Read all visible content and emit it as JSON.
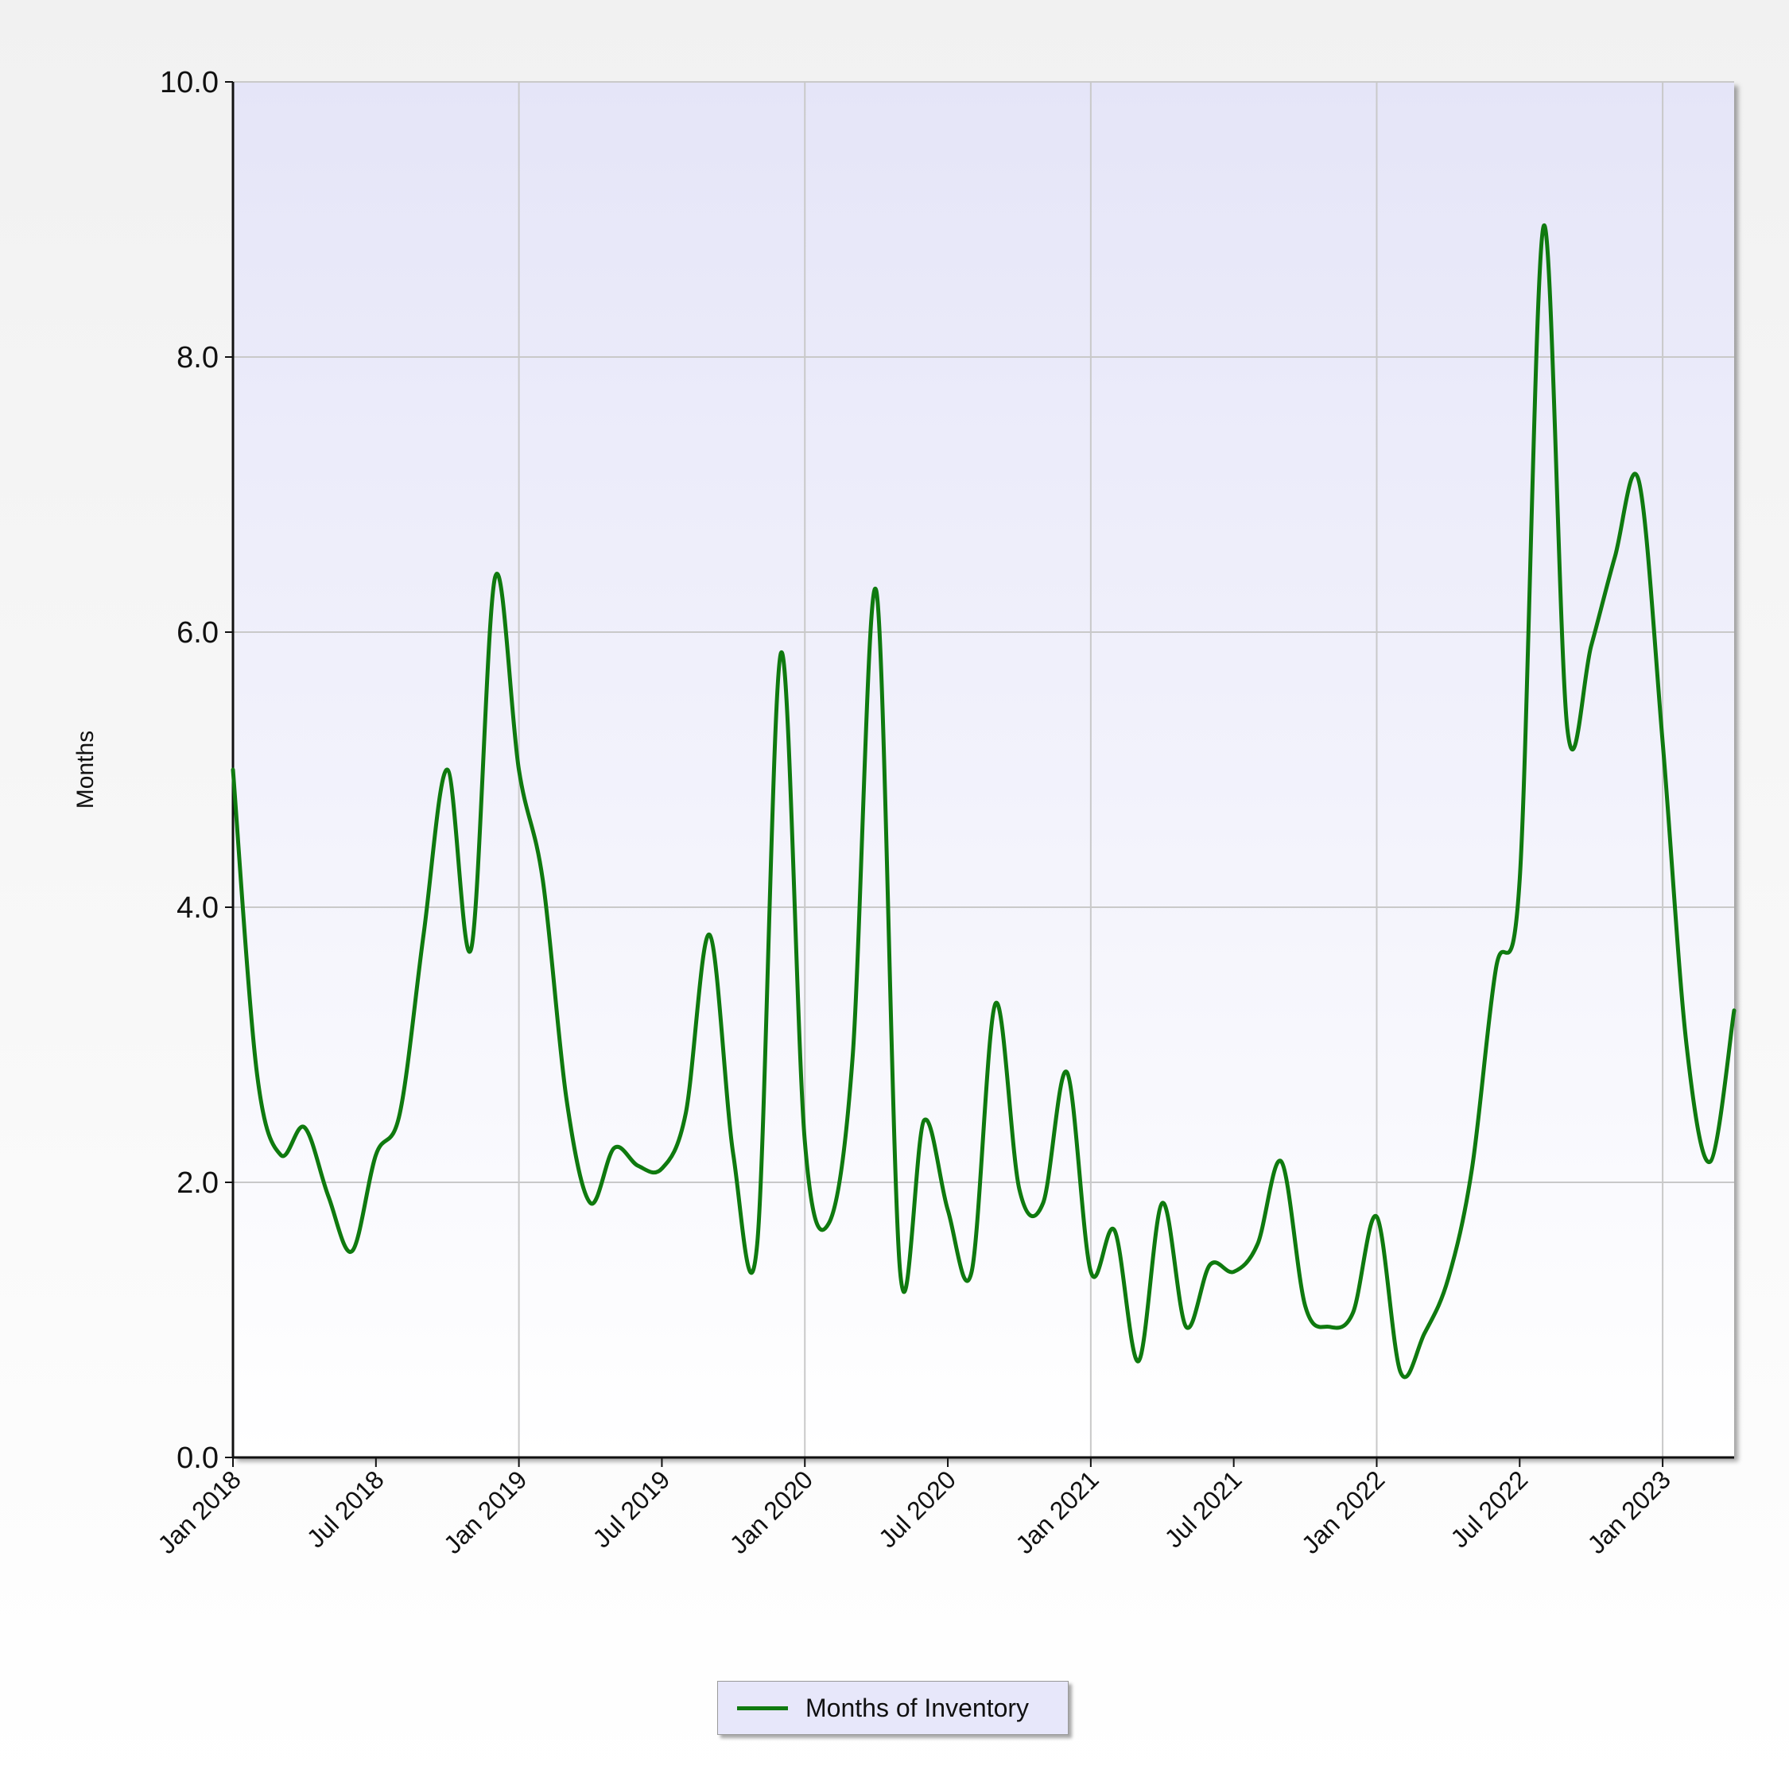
{
  "colors": {
    "line": "#0f7a0f",
    "plot_top": "#e5e5f8",
    "plot_bottom": "#ffffff",
    "grid": "#c9c9c9",
    "axis": "#111111"
  },
  "legend": {
    "label": "Months of Inventory"
  },
  "chart_data": {
    "type": "line",
    "title": "",
    "xlabel": "",
    "ylabel": "Months",
    "xlim": [
      "2018-01",
      "2023-04"
    ],
    "ylim": [
      0,
      10
    ],
    "y_ticks": [
      "0.0",
      "2.0",
      "4.0",
      "6.0",
      "8.0",
      "10.0"
    ],
    "x_ticks": [
      {
        "label": "Jan 2018",
        "x": "2018-01"
      },
      {
        "label": "Jul 2018",
        "x": "2018-07"
      },
      {
        "label": "Jan 2019",
        "x": "2019-01"
      },
      {
        "label": "Jul 2019",
        "x": "2019-07"
      },
      {
        "label": "Jan 2020",
        "x": "2020-01"
      },
      {
        "label": "Jul 2020",
        "x": "2020-07"
      },
      {
        "label": "Jan 2021",
        "x": "2021-01"
      },
      {
        "label": "Jul 2021",
        "x": "2021-07"
      },
      {
        "label": "Jan 2022",
        "x": "2022-01"
      },
      {
        "label": "Jul 2022",
        "x": "2022-07"
      },
      {
        "label": "Jan 2023",
        "x": "2023-01"
      }
    ],
    "grid": "y-major and yearly x",
    "legend_position": "bottom-center",
    "series": [
      {
        "name": "Months of Inventory",
        "x": [
          "2018-01",
          "2018-02",
          "2018-03",
          "2018-04",
          "2018-05",
          "2018-06",
          "2018-07",
          "2018-08",
          "2018-09",
          "2018-10",
          "2018-11",
          "2018-12",
          "2019-01",
          "2019-02",
          "2019-03",
          "2019-04",
          "2019-05",
          "2019-06",
          "2019-07",
          "2019-08",
          "2019-09",
          "2019-10",
          "2019-11",
          "2019-12",
          "2020-01",
          "2020-02",
          "2020-03",
          "2020-04",
          "2020-05",
          "2020-06",
          "2020-07",
          "2020-08",
          "2020-09",
          "2020-10",
          "2020-11",
          "2020-12",
          "2021-01",
          "2021-02",
          "2021-03",
          "2021-04",
          "2021-05",
          "2021-06",
          "2021-07",
          "2021-08",
          "2021-09",
          "2021-10",
          "2021-11",
          "2021-12",
          "2022-01",
          "2022-02",
          "2022-03",
          "2022-04",
          "2022-05",
          "2022-06",
          "2022-07",
          "2022-08",
          "2022-09",
          "2022-10",
          "2022-11",
          "2022-12",
          "2023-01",
          "2023-02",
          "2023-03",
          "2023-04"
        ],
        "values": [
          5.0,
          2.8,
          2.2,
          2.4,
          1.9,
          1.5,
          2.2,
          2.5,
          3.8,
          5.0,
          3.7,
          6.4,
          5.0,
          4.2,
          2.6,
          1.85,
          2.25,
          2.12,
          2.1,
          2.5,
          3.8,
          2.2,
          1.55,
          5.85,
          2.3,
          1.7,
          2.9,
          6.3,
          1.35,
          2.45,
          1.8,
          1.35,
          3.3,
          1.95,
          1.85,
          2.8,
          1.35,
          1.65,
          0.7,
          1.85,
          0.95,
          1.4,
          1.35,
          1.55,
          2.15,
          1.1,
          0.95,
          1.05,
          1.75,
          0.62,
          0.9,
          1.3,
          2.1,
          3.55,
          4.2,
          8.95,
          5.3,
          5.9,
          6.55,
          7.1,
          5.2,
          3.0,
          2.15,
          3.25
        ]
      }
    ]
  }
}
